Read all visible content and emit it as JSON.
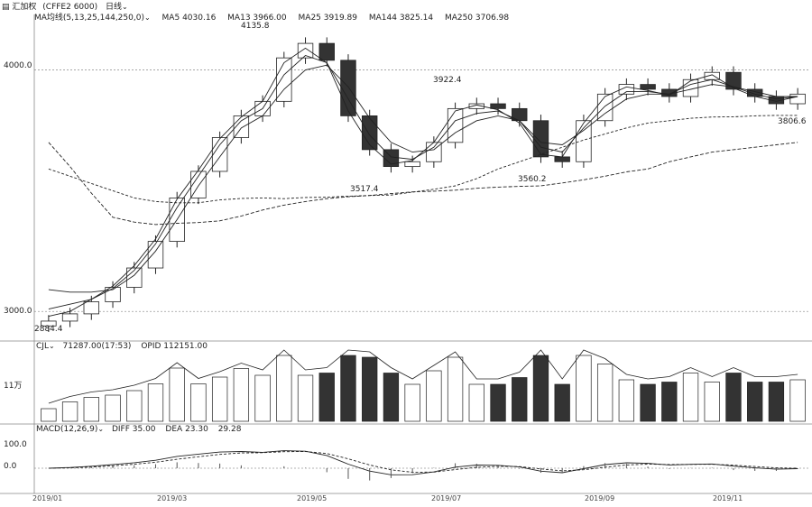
{
  "header": {
    "app_icon": "bars-icon",
    "title": "汇加权",
    "symbol": "(CFFE2 6000)",
    "period": "日线",
    "ma_setting": "MA均线(5,13,25,144,250,0)",
    "ma_items": [
      {
        "label": "MA5",
        "value": "4030.16"
      },
      {
        "label": "MA13",
        "value": "3966.00"
      },
      {
        "label": "MA25",
        "value": "3919.89"
      },
      {
        "label": "MA144",
        "value": "3825.14"
      },
      {
        "label": "MA250",
        "value": "3706.98"
      }
    ]
  },
  "volume_panel": {
    "indicator": "CJL",
    "values": [
      {
        "label": "",
        "value": "71287.00(17:53)"
      },
      {
        "label": "OPID",
        "value": "112151.00"
      }
    ],
    "ytick": "11万"
  },
  "macd_panel": {
    "indicator": "MACD(12,26,9)",
    "values": [
      {
        "label": "DIFF",
        "value": "35.00"
      },
      {
        "label": "DEA",
        "value": "23.30"
      },
      {
        "label": "",
        "value": "29.28"
      }
    ],
    "yticks": [
      "100.0",
      "0.0"
    ]
  },
  "price_panel": {
    "yticks": [
      "4000.0",
      "3000.0"
    ],
    "annotations": [
      "4135.8",
      "3922.4",
      "3517.4",
      "3560.2",
      "3806.6",
      "2884.4"
    ]
  },
  "x_axis": [
    "2019/01",
    "2019/03",
    "2019/05",
    "2019/07",
    "2019/09",
    "2019/11"
  ],
  "colors": {
    "up": "#ffffff",
    "down": "#333333",
    "line": "#222222",
    "grid": "#9a9a9a"
  },
  "chart_data": {
    "type": "line",
    "title": "",
    "xlabel": "",
    "ylabel": "",
    "ylim": [
      2900,
      4200
    ],
    "x": [
      "2019/01",
      "2019/01",
      "2019/01",
      "2019/02",
      "2019/02",
      "2019/02",
      "2019/03",
      "2019/03",
      "2019/03",
      "2019/04",
      "2019/04",
      "2019/04",
      "2019/05",
      "2019/05",
      "2019/05",
      "2019/06",
      "2019/06",
      "2019/06",
      "2019/07",
      "2019/07",
      "2019/07",
      "2019/08",
      "2019/08",
      "2019/08",
      "2019/09",
      "2019/09",
      "2019/09",
      "2019/10",
      "2019/10",
      "2019/10",
      "2019/11",
      "2019/11",
      "2019/11",
      "2019/12",
      "2019/12",
      "2019/12"
    ],
    "series": [
      {
        "name": "close",
        "values": [
          2960,
          2990,
          3040,
          3100,
          3180,
          3290,
          3470,
          3580,
          3720,
          3810,
          3870,
          4050,
          4110,
          4040,
          3810,
          3670,
          3600,
          3620,
          3700,
          3840,
          3860,
          3840,
          3790,
          3640,
          3620,
          3790,
          3900,
          3940,
          3920,
          3890,
          3960,
          3990,
          3920,
          3890,
          3860,
          3900
        ]
      },
      {
        "name": "MA5",
        "values": [
          2980,
          3000,
          3050,
          3105,
          3190,
          3300,
          3465,
          3585,
          3715,
          3805,
          3870,
          4030,
          4090,
          4030,
          3830,
          3690,
          3610,
          3625,
          3700,
          3830,
          3855,
          3835,
          3780,
          3650,
          3640,
          3780,
          3890,
          3930,
          3915,
          3895,
          3955,
          3980,
          3925,
          3890,
          3870,
          3890
        ]
      },
      {
        "name": "MA13",
        "values": [
          3010,
          3030,
          3050,
          3095,
          3170,
          3280,
          3430,
          3560,
          3690,
          3790,
          3840,
          3980,
          4060,
          4030,
          3880,
          3730,
          3640,
          3630,
          3680,
          3790,
          3820,
          3830,
          3790,
          3680,
          3660,
          3760,
          3850,
          3910,
          3910,
          3900,
          3940,
          3960,
          3930,
          3900,
          3880,
          3890
        ]
      },
      {
        "name": "MA25",
        "values": [
          3090,
          3080,
          3080,
          3090,
          3150,
          3250,
          3380,
          3520,
          3640,
          3760,
          3810,
          3920,
          4000,
          4020,
          3930,
          3800,
          3700,
          3660,
          3670,
          3740,
          3790,
          3810,
          3790,
          3700,
          3690,
          3750,
          3820,
          3880,
          3900,
          3900,
          3920,
          3940,
          3930,
          3910,
          3890,
          3890
        ]
      },
      {
        "name": "MA144",
        "values": [
          3590,
          3560,
          3530,
          3500,
          3470,
          3455,
          3450,
          3450,
          3462,
          3468,
          3470,
          3467,
          3472,
          3473,
          3477,
          3480,
          3482,
          3494,
          3506,
          3520,
          3550,
          3590,
          3620,
          3650,
          3680,
          3710,
          3735,
          3760,
          3780,
          3790,
          3800,
          3805,
          3806,
          3810,
          3812,
          3812
        ]
      },
      {
        "name": "MA250",
        "values": [
          3700,
          3600,
          3490,
          3390,
          3370,
          3360,
          3365,
          3368,
          3375,
          3395,
          3420,
          3440,
          3455,
          3467,
          3475,
          3480,
          3488,
          3495,
          3498,
          3502,
          3510,
          3515,
          3518,
          3520,
          3532,
          3545,
          3560,
          3578,
          3590,
          3620,
          3640,
          3660,
          3670,
          3680,
          3690,
          3700
        ]
      }
    ]
  }
}
